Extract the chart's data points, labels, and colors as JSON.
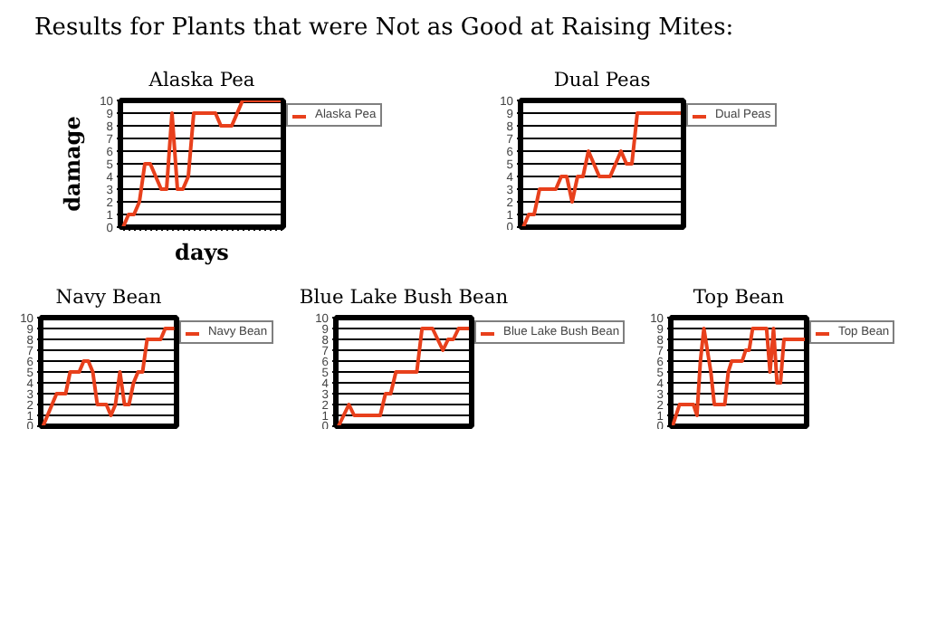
{
  "chart_data": [
    {
      "type": "line",
      "title": "Alaska Pea",
      "xlabel": "days",
      "ylabel": "damage",
      "annotations": [
        "Results for Plants that were Not as Good at Raising Mites:"
      ],
      "categories": [
        null,
        null,
        null,
        null,
        null,
        null,
        null,
        null,
        null,
        null,
        null,
        null,
        null,
        null,
        null,
        null,
        null,
        null,
        null,
        null,
        null,
        null,
        null,
        null,
        null,
        null,
        null,
        null,
        null,
        null
      ],
      "ylim": [
        0,
        10
      ],
      "yticks": [
        0,
        1,
        2,
        3,
        4,
        5,
        6,
        7,
        8,
        9,
        10
      ],
      "grid": "y",
      "legend": "right",
      "tick_labels": "y",
      "series": [
        {
          "name": "Alaska Pea",
          "color": "#e8401c",
          "values": [
            0,
            1,
            1,
            2,
            5,
            5,
            4,
            3,
            3,
            9,
            3,
            3,
            4,
            9,
            9,
            9,
            9,
            9,
            8,
            8,
            8,
            9,
            10,
            10,
            10,
            10,
            10,
            10,
            10,
            10
          ]
        }
      ]
    },
    {
      "type": "line",
      "title": "Dual Peas",
      "categories": [
        null,
        null,
        null,
        null,
        null,
        null,
        null,
        null,
        null,
        null,
        null,
        null,
        null,
        null,
        null,
        null,
        null,
        null,
        null,
        null,
        null,
        null,
        null,
        null,
        null,
        null,
        null,
        null,
        null,
        null
      ],
      "ylim": [
        0,
        10
      ],
      "yticks": [
        0,
        1,
        2,
        3,
        4,
        5,
        6,
        7,
        8,
        9,
        10
      ],
      "grid": "y",
      "legend": "right",
      "tick_labels": "y",
      "series": [
        {
          "name": "Dual Peas",
          "color": "#e8401c",
          "values": [
            0,
            1,
            1,
            3,
            3,
            3,
            3,
            4,
            4,
            2,
            4,
            4,
            6,
            5,
            4,
            4,
            4,
            5,
            6,
            5,
            5,
            9,
            9,
            9,
            9,
            9,
            9,
            9,
            9,
            9
          ]
        }
      ]
    },
    {
      "type": "line",
      "title": "Navy Bean",
      "categories": [
        null,
        null,
        null,
        null,
        null,
        null,
        null,
        null,
        null,
        null,
        null,
        null,
        null,
        null,
        null,
        null,
        null,
        null,
        null,
        null,
        null,
        null,
        null,
        null,
        null,
        null,
        null,
        null,
        null,
        null
      ],
      "ylim": [
        0,
        10
      ],
      "yticks": [
        0,
        1,
        2,
        3,
        4,
        5,
        6,
        7,
        8,
        9,
        10
      ],
      "grid": "y",
      "legend": "right",
      "tick_labels": "y",
      "series": [
        {
          "name": "Navy Bean",
          "color": "#e8401c",
          "values": [
            0,
            1,
            2,
            3,
            3,
            3,
            5,
            5,
            5,
            6,
            6,
            5,
            2,
            2,
            2,
            1,
            2,
            5,
            2,
            2,
            4,
            5,
            5,
            8,
            8,
            8,
            8,
            9,
            9,
            9
          ]
        }
      ]
    },
    {
      "type": "line",
      "title": "Blue Lake Bush Bean",
      "categories": [
        null,
        null,
        null,
        null,
        null,
        null,
        null,
        null,
        null,
        null,
        null,
        null,
        null,
        null,
        null,
        null,
        null,
        null,
        null,
        null,
        null,
        null,
        null,
        null,
        null,
        null
      ],
      "ylim": [
        0,
        10
      ],
      "yticks": [
        0,
        1,
        2,
        3,
        4,
        5,
        6,
        7,
        8,
        9,
        10
      ],
      "grid": "y",
      "legend": "right",
      "tick_labels": "y",
      "series": [
        {
          "name": "Blue Lake Bush Bean",
          "color": "#e8401c",
          "values": [
            0,
            1,
            2,
            1,
            1,
            1,
            1,
            1,
            1,
            3,
            3,
            5,
            5,
            5,
            5,
            5,
            9,
            9,
            9,
            8,
            7,
            8,
            8,
            9,
            9,
            9
          ]
        }
      ]
    },
    {
      "type": "line",
      "title": "Top Bean",
      "categories": [
        null,
        null,
        null,
        null,
        null,
        null,
        null,
        null,
        null,
        null,
        null,
        null,
        null,
        null,
        null,
        null,
        null,
        null,
        null,
        null,
        null,
        null,
        null,
        null,
        null,
        null,
        null,
        null,
        null,
        null,
        null,
        null,
        null,
        null,
        null,
        null,
        null,
        null,
        null
      ],
      "ylim": [
        0,
        10
      ],
      "yticks": [
        0,
        1,
        2,
        3,
        4,
        5,
        6,
        7,
        8,
        9,
        10
      ],
      "grid": "y",
      "legend": "right",
      "tick_labels": "y",
      "series": [
        {
          "name": "Top Bean",
          "color": "#e8401c",
          "values": [
            0,
            1,
            2,
            2,
            2,
            2,
            2,
            1,
            6,
            9,
            7,
            5,
            2,
            2,
            2,
            2,
            5,
            6,
            6,
            6,
            6,
            7,
            7,
            9,
            9,
            9,
            9,
            9,
            5,
            9,
            4,
            4,
            8,
            8,
            8,
            8,
            8,
            8,
            8
          ]
        }
      ]
    }
  ]
}
